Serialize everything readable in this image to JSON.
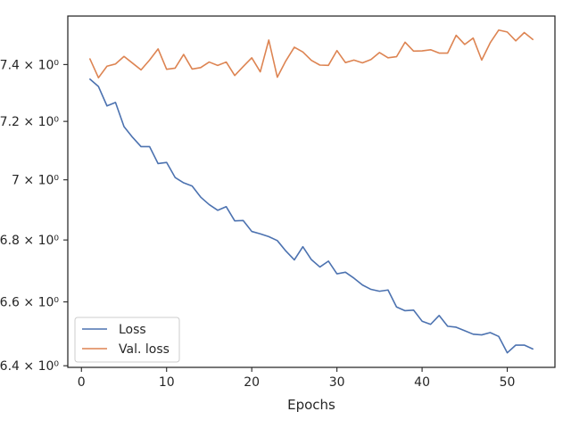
{
  "chart_data": {
    "type": "line",
    "title": "",
    "xlabel": "Epochs",
    "ylabel": "",
    "yscale": "log",
    "xlim": [
      -1.6,
      55.6
    ],
    "ylim": [
      6.395,
      7.575
    ],
    "grid": false,
    "legend_position": "lower-left",
    "x_ticks": [
      0,
      10,
      20,
      30,
      40,
      50
    ],
    "x_tick_labels": [
      "0",
      "10",
      "20",
      "30",
      "40",
      "50"
    ],
    "y_ticks": [
      6.4,
      6.6,
      6.8,
      7.0,
      7.2,
      7.4
    ],
    "y_tick_labels": [
      "6.4 × 10⁰",
      "6.6 × 10⁰",
      "6.8 × 10⁰",
      "7 × 10⁰",
      "7.2 × 10⁰",
      "7.4 × 10⁰"
    ],
    "x": [
      1,
      2,
      3,
      4,
      5,
      6,
      7,
      8,
      9,
      10,
      11,
      12,
      13,
      14,
      15,
      16,
      17,
      18,
      19,
      20,
      21,
      22,
      23,
      24,
      25,
      26,
      27,
      28,
      29,
      30,
      31,
      32,
      33,
      34,
      35,
      36,
      37,
      38,
      39,
      40,
      41,
      42,
      43,
      44,
      45,
      46,
      47,
      48,
      49,
      50,
      51,
      52,
      53
    ],
    "series": [
      {
        "name": "Loss",
        "color": "#4c72b0",
        "values": [
          7.348,
          7.322,
          7.254,
          7.266,
          7.182,
          7.145,
          7.113,
          7.113,
          7.055,
          7.059,
          7.008,
          6.99,
          6.979,
          6.942,
          6.917,
          6.898,
          6.91,
          6.863,
          6.864,
          6.828,
          6.82,
          6.811,
          6.798,
          6.764,
          6.735,
          6.778,
          6.736,
          6.712,
          6.731,
          6.69,
          6.695,
          6.676,
          6.654,
          6.64,
          6.634,
          6.638,
          6.584,
          6.572,
          6.574,
          6.539,
          6.529,
          6.557,
          6.523,
          6.52,
          6.509,
          6.498,
          6.496,
          6.503,
          6.491,
          6.44,
          6.464,
          6.464,
          6.452
        ]
      },
      {
        "name": "Val. loss",
        "color": "#dd8452",
        "values": [
          7.42,
          7.353,
          7.394,
          7.402,
          7.429,
          7.405,
          7.381,
          7.416,
          7.456,
          7.383,
          7.387,
          7.436,
          7.384,
          7.389,
          7.409,
          7.397,
          7.409,
          7.361,
          7.393,
          7.424,
          7.374,
          7.488,
          7.355,
          7.413,
          7.462,
          7.445,
          7.415,
          7.398,
          7.397,
          7.45,
          7.407,
          7.416,
          7.406,
          7.418,
          7.443,
          7.424,
          7.428,
          7.48,
          7.448,
          7.449,
          7.453,
          7.441,
          7.441,
          7.505,
          7.472,
          7.495,
          7.416,
          7.478,
          7.524,
          7.517,
          7.485,
          7.515,
          7.49
        ]
      }
    ]
  }
}
